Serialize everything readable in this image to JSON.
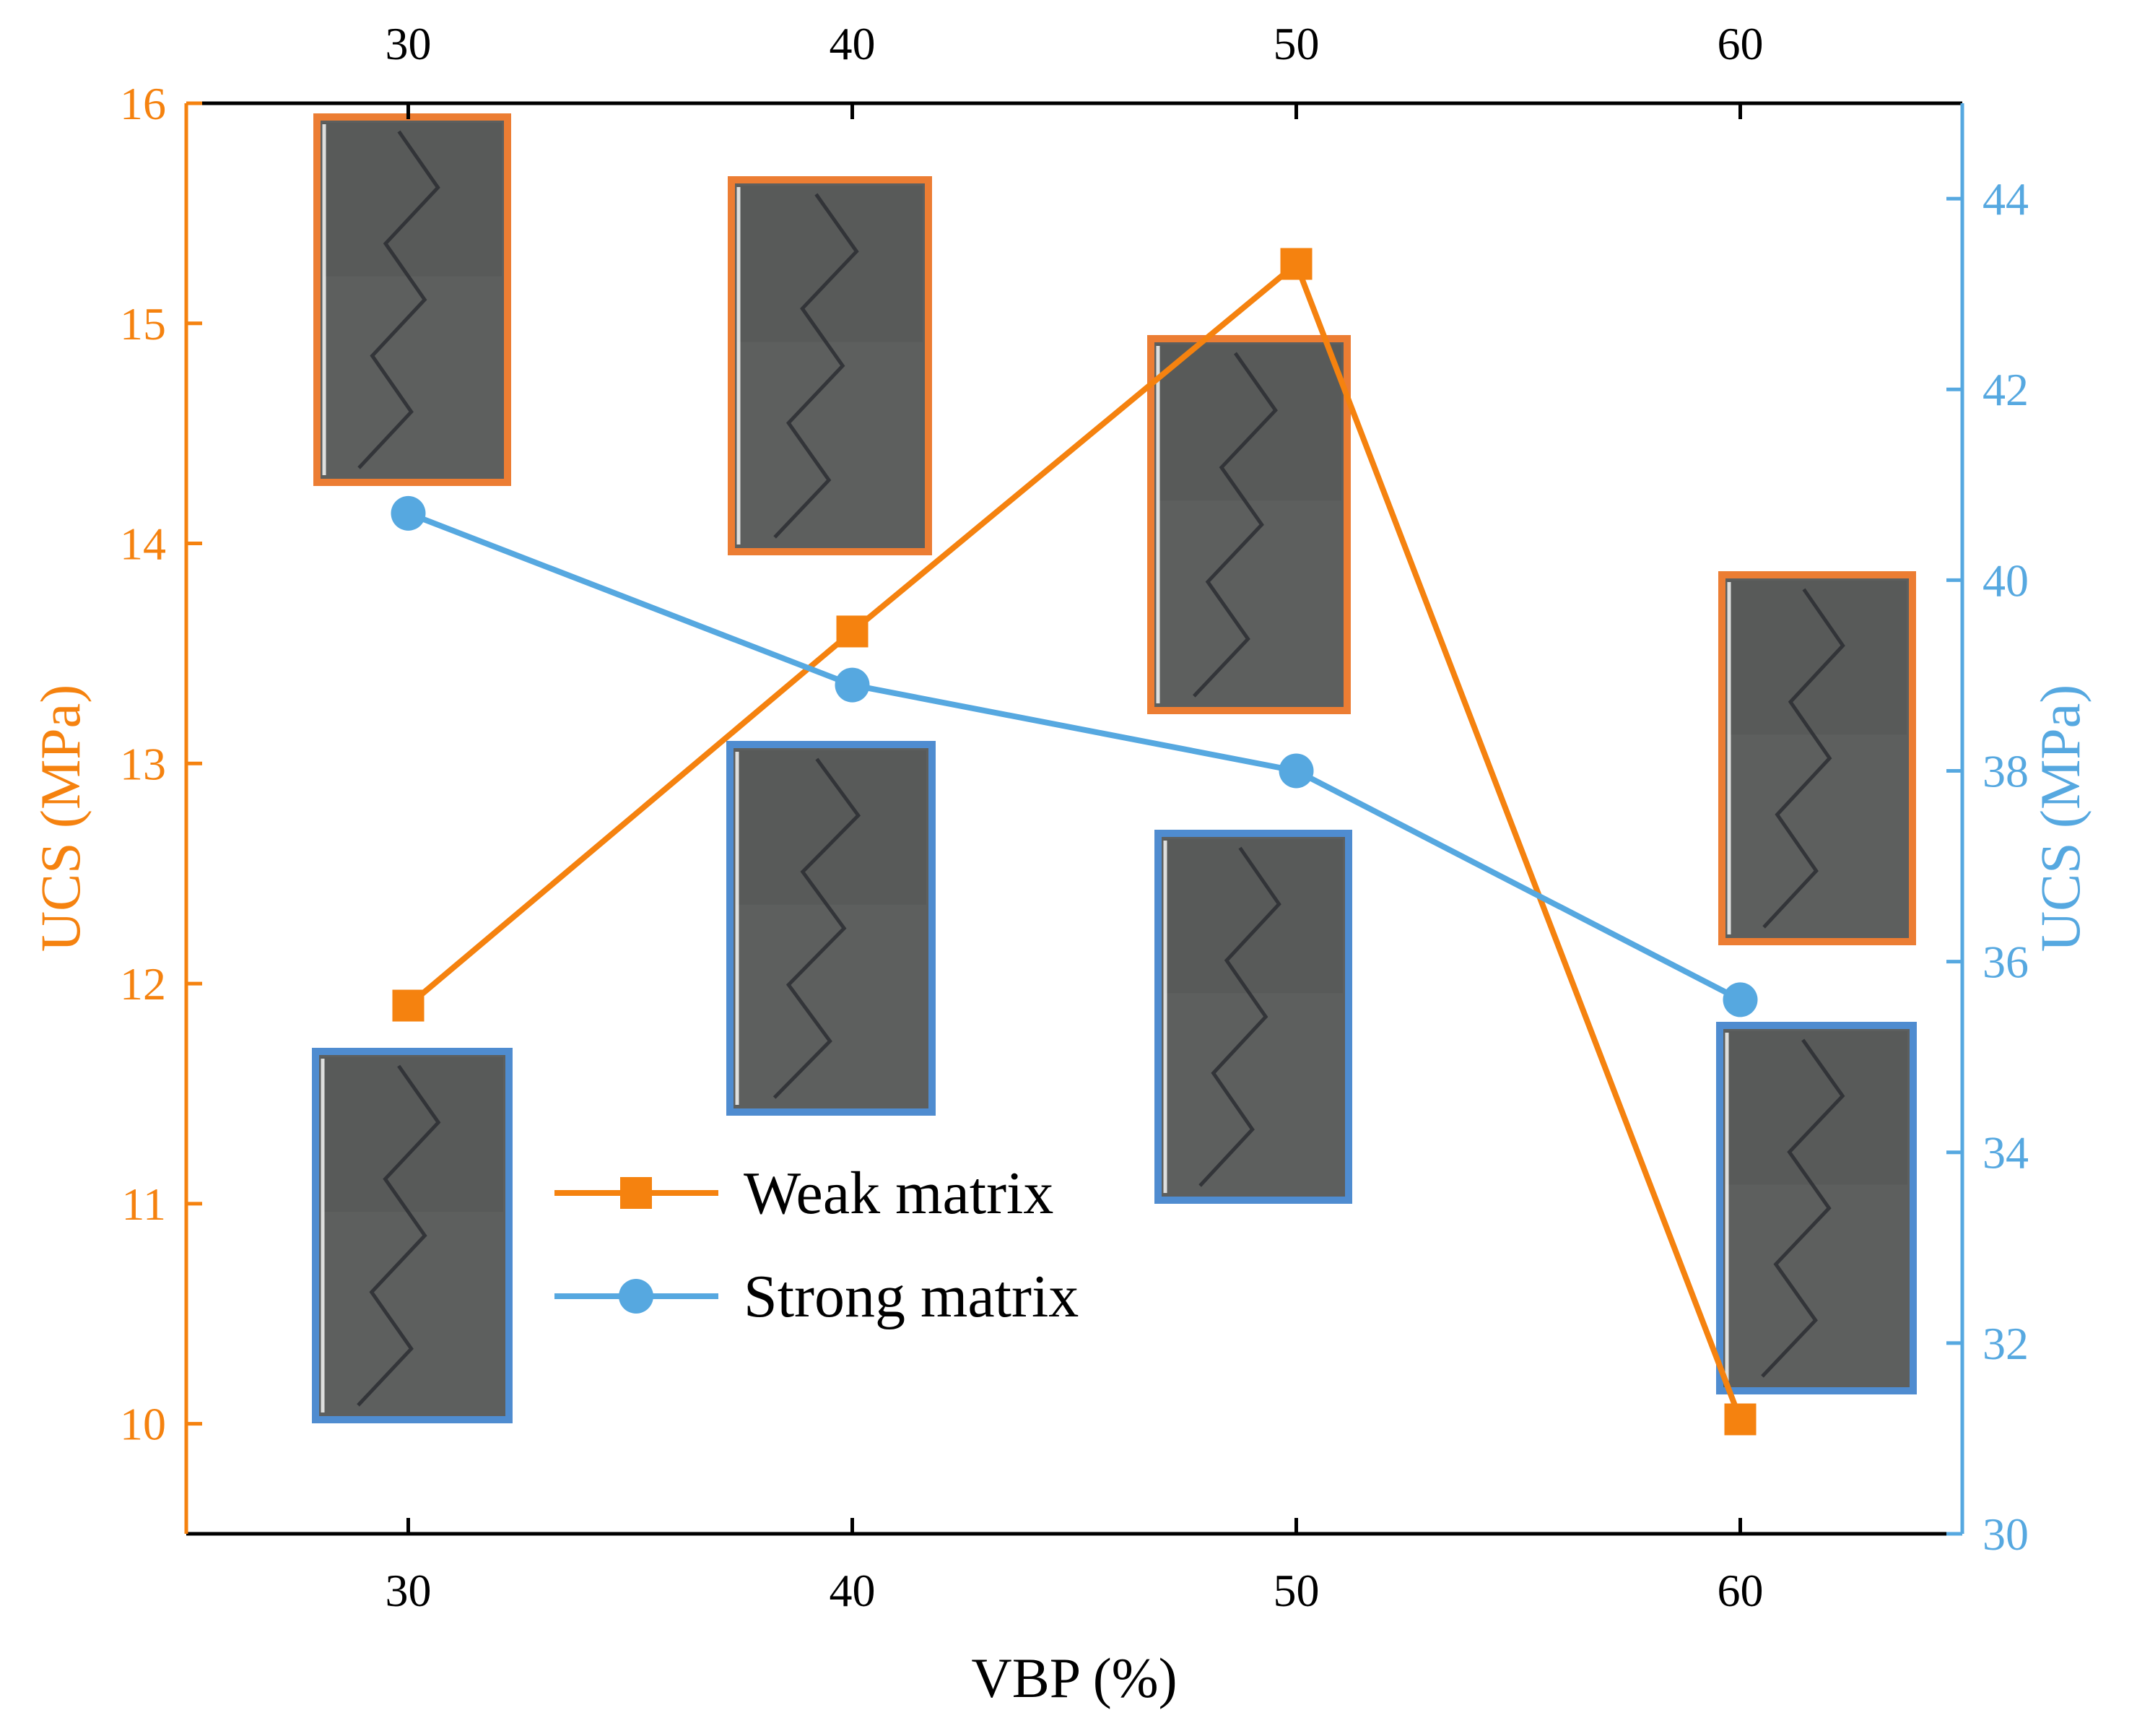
{
  "chart_data": {
    "type": "line",
    "title": "",
    "xlabel": "VBP (%)",
    "ylabel": "UCS (MPa)",
    "y2label": "UCS (MPa)",
    "x": [
      30,
      40,
      50,
      60
    ],
    "xlim": [
      25,
      65
    ],
    "ylim": [
      9.5,
      16
    ],
    "y2lim": [
      30,
      45
    ],
    "xticks": [
      30,
      40,
      50,
      60
    ],
    "yticks": [
      10,
      11,
      12,
      13,
      14,
      15,
      16
    ],
    "y2ticks": [
      30,
      32,
      34,
      36,
      38,
      40,
      42,
      44
    ],
    "series": [
      {
        "name": "Weak matrix",
        "axis": "left",
        "marker": "square",
        "values": [
          11.9,
          13.6,
          15.27,
          10.02
        ]
      },
      {
        "name": "Strong matrix",
        "axis": "right",
        "marker": "circle",
        "values": [
          40.7,
          38.9,
          38.0,
          35.6
        ]
      }
    ],
    "legend_position": "center-left",
    "insets": [
      {
        "name": "weak-30"
      },
      {
        "name": "weak-40"
      },
      {
        "name": "weak-50"
      },
      {
        "name": "weak-60"
      },
      {
        "name": "strong-30"
      },
      {
        "name": "strong-40"
      },
      {
        "name": "strong-50"
      },
      {
        "name": "strong-60"
      }
    ]
  },
  "colors": {
    "weak": "#f5820f",
    "strong": "#56a8e0",
    "weak_frame": "#ec7d33",
    "strong_frame": "#4f8cd0",
    "axis": "#000000",
    "photo": "#5d5f5e"
  }
}
